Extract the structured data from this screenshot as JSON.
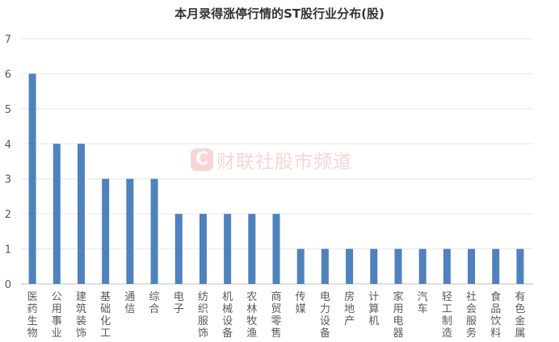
{
  "chart_data": {
    "type": "bar",
    "title": "本月录得涨停行情的ST股行业分布(股)",
    "xlabel": "",
    "ylabel": "",
    "ylim": [
      0,
      7
    ],
    "yticks": [
      "0",
      "1",
      "2",
      "3",
      "4",
      "5",
      "6",
      "7"
    ],
    "grid": true,
    "bar_color": "#4f81bd",
    "categories": [
      "医药生物",
      "公用事业",
      "建筑装饰",
      "基础化工",
      "通信",
      "综合",
      "电子",
      "纺织服饰",
      "机械设备",
      "农林牧渔",
      "商贸零售",
      "传媒",
      "电力设备",
      "房地产",
      "计算机",
      "家用电器",
      "汽车",
      "轻工制造",
      "社会服务",
      "食品饮料",
      "有色金属"
    ],
    "values": [
      6,
      4,
      4,
      3,
      3,
      3,
      2,
      2,
      2,
      2,
      2,
      1,
      1,
      1,
      1,
      1,
      1,
      1,
      1,
      1,
      1
    ]
  },
  "watermark": {
    "logo_letter": "C",
    "text": "财联社股市频道"
  }
}
